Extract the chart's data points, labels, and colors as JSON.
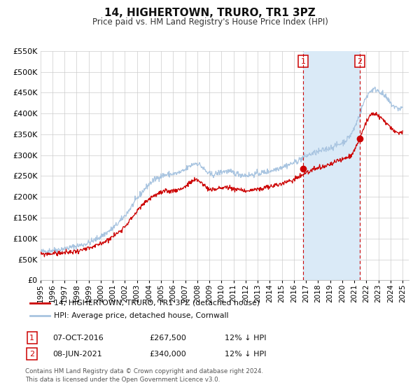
{
  "title": "14, HIGHERTOWN, TRURO, TR1 3PZ",
  "subtitle": "Price paid vs. HM Land Registry's House Price Index (HPI)",
  "ylim": [
    0,
    550000
  ],
  "yticks": [
    0,
    50000,
    100000,
    150000,
    200000,
    250000,
    300000,
    350000,
    400000,
    450000,
    500000,
    550000
  ],
  "ytick_labels": [
    "£0",
    "£50K",
    "£100K",
    "£150K",
    "£200K",
    "£250K",
    "£300K",
    "£350K",
    "£400K",
    "£450K",
    "£500K",
    "£550K"
  ],
  "xlim_start": 1995.0,
  "xlim_end": 2025.5,
  "xtick_years": [
    1995,
    1996,
    1997,
    1998,
    1999,
    2000,
    2001,
    2002,
    2003,
    2004,
    2005,
    2006,
    2007,
    2008,
    2009,
    2010,
    2011,
    2012,
    2013,
    2014,
    2015,
    2016,
    2017,
    2018,
    2019,
    2020,
    2021,
    2022,
    2023,
    2024,
    2025
  ],
  "hpi_color": "#a8c4e0",
  "hpi_shade_color": "#daeaf7",
  "price_color": "#cc0000",
  "marker_color": "#cc0000",
  "sale1_x": 2016.77,
  "sale1_y": 267500,
  "sale2_x": 2021.44,
  "sale2_y": 340000,
  "vline1_x": 2016.77,
  "vline2_x": 2021.44,
  "vline_color": "#cc0000",
  "legend1_label": "14, HIGHERTOWN, TRURO, TR1 3PZ (detached house)",
  "legend2_label": "HPI: Average price, detached house, Cornwall",
  "table_row1": [
    "1",
    "07-OCT-2016",
    "£267,500",
    "12% ↓ HPI"
  ],
  "table_row2": [
    "2",
    "08-JUN-2021",
    "£340,000",
    "12% ↓ HPI"
  ],
  "footnote1": "Contains HM Land Registry data © Crown copyright and database right 2024.",
  "footnote2": "This data is licensed under the Open Government Licence v3.0.",
  "background_color": "#ffffff",
  "plot_bg_color": "#ffffff",
  "grid_color": "#cccccc"
}
